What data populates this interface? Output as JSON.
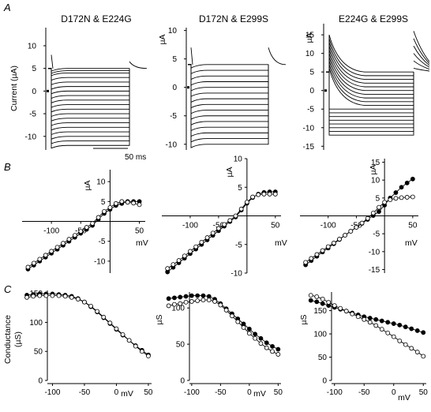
{
  "panel_labels": {
    "A": "A",
    "B": "B",
    "C": "C"
  },
  "rowA": {
    "titles": [
      "D172N & E224G",
      "D172N & E299S",
      "E224G & E299S"
    ],
    "scale_bar_label": "50 ms",
    "ylabels": [
      "Current (µA)",
      "µA",
      "µA"
    ],
    "yticks": [
      [
        "10",
        "5",
        "0",
        "-5",
        "-10"
      ],
      [
        "10",
        "5",
        "0",
        "-5",
        "-10"
      ],
      [
        "15",
        "10",
        "5",
        "0",
        "-5",
        "-10",
        "-15"
      ]
    ]
  },
  "rowB": {
    "ylabels": [
      "µA",
      "µA",
      "µA"
    ],
    "xlabel": "mV",
    "xticks": [
      "-100",
      "-50",
      "50"
    ],
    "yticks": [
      [
        "10",
        "5",
        "-5",
        "-10"
      ],
      [
        "10",
        "5",
        "-5",
        "-10"
      ],
      [
        "15",
        "10",
        "5",
        "-5",
        "-10",
        "-15"
      ]
    ]
  },
  "rowC": {
    "ylabels": [
      "Conductance\n(µS)",
      "µS",
      "µS"
    ],
    "xlabel": "mV",
    "xticks": [
      "-100",
      "-50",
      "0",
      "50"
    ],
    "yticks": [
      [
        "150",
        "100",
        "50",
        "0"
      ],
      [
        "100",
        "50",
        "0"
      ],
      [
        "150",
        "100",
        "50",
        "0"
      ]
    ]
  },
  "chart_data": [
    {
      "type": "line",
      "panel": "A",
      "title": "D172N & E224G",
      "ylabel": "Current (µA)",
      "ylim": [
        -13,
        14
      ],
      "scale_bar": "50 ms",
      "holding_current": 5,
      "step_currents": [
        -12,
        -11,
        -10,
        -9,
        -8,
        -7,
        -6,
        -5,
        -4,
        -3,
        -2,
        -1,
        0,
        1,
        2,
        3,
        4,
        4.5,
        5
      ],
      "tail_current_peak": 6.5
    },
    {
      "type": "line",
      "panel": "A",
      "title": "D172N & E299S",
      "ylabel": "µA",
      "ylim": [
        -11,
        10.5
      ],
      "holding_current": 4,
      "step_currents": [
        -10,
        -9,
        -8,
        -7,
        -6,
        -5,
        -4,
        -3,
        -2,
        -1,
        0,
        1,
        2,
        3,
        4
      ],
      "tail_current_peak": 7
    },
    {
      "type": "line",
      "panel": "A",
      "title": "E224G & E299S",
      "ylabel": "µA",
      "ylim": [
        -16,
        18
      ],
      "holding_current": 5,
      "step_currents": [
        -12,
        -11,
        -10,
        -9,
        -8,
        -7,
        -6,
        -5,
        -4,
        -3,
        -2,
        -1,
        0,
        1,
        2,
        3,
        4,
        5
      ],
      "initial_peaks": [
        6,
        7,
        8,
        9,
        10,
        11,
        12,
        13,
        14,
        15
      ],
      "tail_currents": [
        6,
        8,
        10,
        12,
        14,
        16
      ]
    },
    {
      "type": "line",
      "panel": "B",
      "xlabel": "mV",
      "ylabel": "µA",
      "xlim": [
        -150,
        60
      ],
      "ylim": [
        -13,
        13
      ],
      "x": [
        -140,
        -130,
        -120,
        -110,
        -100,
        -90,
        -80,
        -70,
        -60,
        -50,
        -40,
        -30,
        -20,
        -10,
        0,
        10,
        20,
        30,
        40,
        50
      ],
      "series": [
        {
          "marker": "filled",
          "values": [
            -12,
            -11,
            -10,
            -9,
            -8,
            -7,
            -6,
            -5,
            -4,
            -3,
            -2,
            -1,
            0.5,
            2,
            3,
            4,
            4.5,
            5,
            5,
            5
          ]
        },
        {
          "marker": "open",
          "values": [
            -11.5,
            -10.5,
            -9.5,
            -8.5,
            -7.5,
            -6.5,
            -5.5,
            -4.5,
            -3.5,
            -2.5,
            -1.5,
            -0.5,
            1,
            2.5,
            3.5,
            4.5,
            5,
            4.8,
            4.6,
            4.2
          ]
        }
      ]
    },
    {
      "type": "line",
      "panel": "B",
      "xlabel": "mV",
      "ylabel": "µA",
      "xlim": [
        -150,
        60
      ],
      "ylim": [
        -10,
        10
      ],
      "x": [
        -140,
        -130,
        -120,
        -110,
        -100,
        -90,
        -80,
        -70,
        -60,
        -50,
        -40,
        -30,
        -20,
        -10,
        0,
        10,
        20,
        30,
        40,
        50
      ],
      "series": [
        {
          "marker": "filled",
          "values": [
            -9.8,
            -9,
            -8.2,
            -7.4,
            -6.6,
            -5.8,
            -5,
            -4.2,
            -3.4,
            -2.6,
            -1.8,
            -1,
            -0.2,
            1,
            2.2,
            3.2,
            3.8,
            4.1,
            4.2,
            4.2
          ]
        },
        {
          "marker": "open",
          "values": [
            -9.2,
            -8.5,
            -7.8,
            -7,
            -6.2,
            -5.4,
            -4.6,
            -3.8,
            -3,
            -2.2,
            -1.5,
            -0.8,
            0,
            1.2,
            2.4,
            3.3,
            3.7,
            3.8,
            3.8,
            3.8
          ]
        }
      ]
    },
    {
      "type": "line",
      "panel": "B",
      "xlabel": "mV",
      "ylabel": "µA",
      "xlim": [
        -150,
        60
      ],
      "ylim": [
        -16,
        16
      ],
      "x": [
        -140,
        -130,
        -120,
        -110,
        -100,
        -90,
        -80,
        -70,
        -60,
        -50,
        -40,
        -30,
        -20,
        -10,
        0,
        10,
        20,
        30,
        40,
        50
      ],
      "series": [
        {
          "marker": "filled",
          "values": [
            -13.7,
            -12.5,
            -11.3,
            -10.1,
            -9,
            -7.8,
            -6.6,
            -5.4,
            -4.3,
            -3.2,
            -2.1,
            -1,
            0.1,
            1.2,
            3,
            5,
            6.5,
            8,
            9.2,
            10.3
          ]
        },
        {
          "marker": "open",
          "values": [
            -13,
            -11.9,
            -10.8,
            -9.7,
            -8.6,
            -7.6,
            -6.5,
            -5.4,
            -4.3,
            -3.2,
            -2,
            -0.7,
            0.8,
            2.4,
            3.8,
            4.5,
            4.9,
            5.1,
            5.2,
            5.3
          ]
        }
      ]
    },
    {
      "type": "line",
      "panel": "C",
      "xlabel": "mV",
      "ylabel": "Conductance (µS)",
      "xlim": [
        -145,
        55
      ],
      "ylim": [
        0,
        155
      ],
      "x": [
        -140,
        -130,
        -120,
        -110,
        -100,
        -90,
        -80,
        -70,
        -60,
        -50,
        -40,
        -30,
        -20,
        -10,
        0,
        10,
        20,
        30,
        40,
        50
      ],
      "series": [
        {
          "marker": "filled",
          "values": [
            147,
            148,
            149,
            149,
            149,
            148,
            147,
            145,
            141,
            135,
            127,
            118,
            108,
            98,
            88,
            78,
            69,
            60,
            52,
            44
          ]
        },
        {
          "marker": "open",
          "values": [
            143,
            145,
            146,
            146,
            146,
            146,
            145,
            143,
            140,
            135,
            128,
            119,
            109,
            99,
            89,
            79,
            69,
            59,
            50,
            42
          ]
        }
      ]
    },
    {
      "type": "line",
      "panel": "C",
      "xlabel": "mV",
      "ylabel": "µS",
      "xlim": [
        -145,
        55
      ],
      "ylim": [
        0,
        122
      ],
      "x": [
        -140,
        -130,
        -120,
        -110,
        -100,
        -90,
        -80,
        -70,
        -60,
        -50,
        -40,
        -30,
        -20,
        -10,
        0,
        10,
        20,
        30,
        40,
        50
      ],
      "series": [
        {
          "marker": "filled",
          "values": [
            113,
            114,
            115,
            116,
            117,
            117,
            117,
            116,
            112,
            106,
            99,
            92,
            85,
            78,
            71,
            64,
            58,
            52,
            47,
            43
          ]
        },
        {
          "marker": "open",
          "values": [
            103,
            105,
            106,
            108,
            109,
            110,
            111,
            111,
            109,
            104,
            97,
            89,
            81,
            73,
            65,
            58,
            51,
            45,
            40,
            36
          ]
        }
      ]
    },
    {
      "type": "line",
      "panel": "C",
      "xlabel": "mV",
      "ylabel": "µS",
      "xlim": [
        -145,
        55
      ],
      "ylim": [
        0,
        190
      ],
      "x": [
        -140,
        -130,
        -120,
        -110,
        -100,
        -90,
        -80,
        -70,
        -60,
        -50,
        -40,
        -30,
        -20,
        -10,
        0,
        10,
        20,
        30,
        40,
        50
      ],
      "series": [
        {
          "marker": "filled",
          "values": [
            172,
            169,
            165,
            161,
            157,
            153,
            149,
            145,
            141,
            137,
            134,
            131,
            128,
            125,
            122,
            119,
            115,
            111,
            107,
            103
          ]
        },
        {
          "marker": "open",
          "values": [
            183,
            180,
            175,
            168,
            161,
            155,
            149,
            143,
            137,
            131,
            125,
            118,
            110,
            102,
            94,
            85,
            77,
            69,
            61,
            52
          ]
        }
      ]
    }
  ]
}
